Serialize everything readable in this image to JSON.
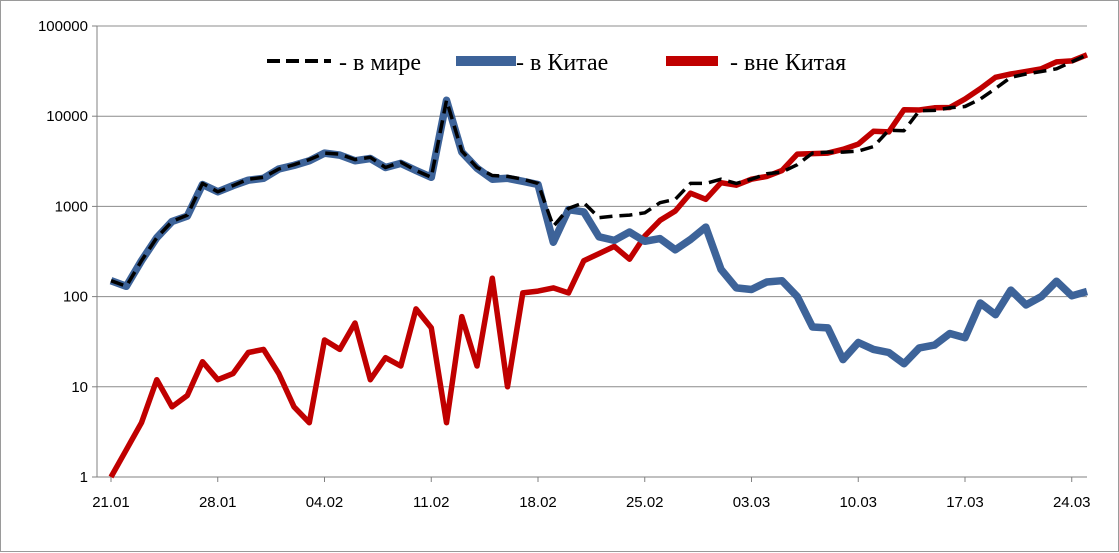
{
  "chart_data": {
    "type": "line",
    "y_scale": "log",
    "ylim": [
      1,
      100000
    ],
    "y_ticks": [
      1,
      10,
      100,
      1000,
      10000,
      100000
    ],
    "y_tick_labels": [
      "1",
      "10",
      "100",
      "1000",
      "10000",
      "100000"
    ],
    "x_tick_labels": [
      "21.01",
      "28.01",
      "04.02",
      "11.02",
      "18.02",
      "25.02",
      "03.03",
      "10.03",
      "17.03",
      "24.03"
    ],
    "x_dates": [
      "21.01",
      "22.01",
      "23.01",
      "24.01",
      "25.01",
      "26.01",
      "27.01",
      "28.01",
      "29.01",
      "30.01",
      "31.01",
      "01.02",
      "02.02",
      "03.02",
      "04.02",
      "05.02",
      "06.02",
      "07.02",
      "08.02",
      "09.02",
      "10.02",
      "11.02",
      "12.02",
      "13.02",
      "14.02",
      "15.02",
      "16.02",
      "17.02",
      "18.02",
      "19.02",
      "20.02",
      "21.02",
      "22.02",
      "23.02",
      "24.02",
      "25.02",
      "26.02",
      "27.02",
      "28.02",
      "29.02",
      "01.03",
      "02.03",
      "03.03",
      "04.03",
      "05.03",
      "06.03",
      "07.03",
      "08.03",
      "09.03",
      "10.03",
      "11.03",
      "12.03",
      "13.03",
      "14.03",
      "15.03",
      "16.03",
      "17.03",
      "18.03",
      "19.03",
      "20.03",
      "21.03",
      "22.03",
      "23.03",
      "24.03",
      "25.03"
    ],
    "grid": {
      "horizontal": true,
      "vertical": false
    },
    "legend_position": "top",
    "series": [
      {
        "name": "- в мире",
        "color": "#000000",
        "style": "dashed",
        "values": [
          150,
          130,
          250,
          450,
          680,
          800,
          1800,
          1450,
          1700,
          2000,
          2100,
          2600,
          2900,
          3300,
          3900,
          3800,
          3300,
          3500,
          2700,
          3100,
          2500,
          2100,
          15000,
          4100,
          2700,
          2200,
          2150,
          2000,
          1800,
          600,
          950,
          1100,
          750,
          780,
          800,
          850,
          1100,
          1200,
          1800,
          1800,
          2000,
          1800,
          2000,
          2300,
          2400,
          2900,
          3900,
          4000,
          4000,
          4100,
          4600,
          7000,
          6900,
          11500,
          11600,
          12400,
          12800,
          15500,
          20300,
          27000,
          29400,
          31300,
          33500,
          40000,
          48000
        ]
      },
      {
        "name": "-  в Китае",
        "color": "#3D6399",
        "style": "solid",
        "values": [
          150,
          130,
          250,
          450,
          680,
          780,
          1750,
          1450,
          1700,
          1950,
          2050,
          2600,
          2850,
          3200,
          3900,
          3700,
          3200,
          3400,
          2700,
          3000,
          2500,
          2100,
          15000,
          4000,
          2650,
          2000,
          2050,
          1900,
          1750,
          400,
          920,
          870,
          460,
          420,
          520,
          410,
          440,
          330,
          430,
          590,
          200,
          125,
          120,
          145,
          150,
          100,
          46,
          45,
          20,
          31,
          26,
          24,
          18,
          27,
          29,
          39,
          35,
          85,
          63,
          118,
          81,
          100,
          148,
          102,
          114
        ]
      },
      {
        "name": "- вне Китая",
        "color": "#C00000",
        "style": "solid",
        "values": [
          1,
          2,
          4,
          12,
          6,
          8,
          19,
          12,
          14,
          24,
          26,
          14,
          6,
          4,
          33,
          26,
          51,
          12,
          21,
          17,
          73,
          45,
          4,
          60,
          17,
          160,
          10,
          110,
          115,
          125,
          110,
          250,
          300,
          360,
          260,
          470,
          700,
          890,
          1400,
          1200,
          1830,
          1720,
          2000,
          2150,
          2500,
          3800,
          3850,
          3900,
          4300,
          4900,
          6800,
          6700,
          11800,
          11700,
          12400,
          12500,
          15500,
          20200,
          27000,
          29400,
          31300,
          33500,
          40000,
          41000,
          48000
        ]
      }
    ]
  }
}
